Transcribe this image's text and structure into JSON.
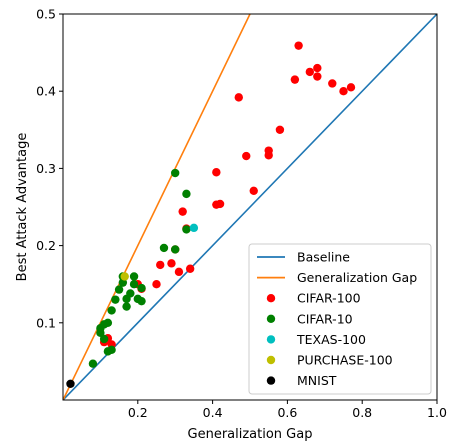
{
  "chart_data": {
    "type": "scatter",
    "xlabel": "Generalization Gap",
    "ylabel": "Best Attack Advantage",
    "xlim": [
      0.0,
      1.0
    ],
    "ylim": [
      0.0,
      0.5
    ],
    "x_ticks": [
      0.2,
      0.4,
      0.6,
      0.8,
      1.0
    ],
    "x_tick_labels": [
      "0.2",
      "0.4",
      "0.6",
      "0.8",
      "1.0"
    ],
    "y_ticks": [
      0.1,
      0.2,
      0.3,
      0.4,
      0.5
    ],
    "y_tick_labels": [
      "0.1",
      "0.2",
      "0.3",
      "0.4",
      "0.5"
    ],
    "grid": false,
    "legend_position": "bottom-right",
    "lines": [
      {
        "name": "Baseline",
        "color": "#1f77b4",
        "x": [
          0.0,
          1.0
        ],
        "y": [
          0.0,
          0.5
        ]
      },
      {
        "name": "Generalization Gap",
        "color": "#ff7f0e",
        "x": [
          0.0,
          0.5
        ],
        "y": [
          0.0,
          0.5
        ]
      }
    ],
    "series": [
      {
        "name": "CIFAR-100",
        "color": "#ff0000",
        "x": [
          0.63,
          0.66,
          0.68,
          0.68,
          0.72,
          0.75,
          0.77,
          0.62,
          0.47,
          0.58,
          0.55,
          0.55,
          0.49,
          0.51,
          0.41,
          0.42,
          0.41,
          0.32,
          0.33,
          0.3,
          0.29,
          0.31,
          0.25,
          0.26,
          0.34,
          0.2,
          0.21,
          0.12,
          0.11,
          0.13
        ],
        "y": [
          0.459,
          0.425,
          0.43,
          0.419,
          0.41,
          0.4,
          0.405,
          0.415,
          0.392,
          0.35,
          0.323,
          0.317,
          0.316,
          0.271,
          0.295,
          0.254,
          0.253,
          0.244,
          0.222,
          0.195,
          0.177,
          0.166,
          0.15,
          0.175,
          0.17,
          0.15,
          0.144,
          0.08,
          0.075,
          0.072
        ]
      },
      {
        "name": "CIFAR-10",
        "color": "#008000",
        "x": [
          0.3,
          0.33,
          0.27,
          0.3,
          0.33,
          0.16,
          0.19,
          0.16,
          0.19,
          0.21,
          0.15,
          0.18,
          0.2,
          0.17,
          0.17,
          0.21,
          0.14,
          0.13,
          0.11,
          0.12,
          0.1,
          0.1,
          0.11,
          0.13,
          0.12,
          0.08
        ],
        "y": [
          0.294,
          0.267,
          0.197,
          0.195,
          0.221,
          0.16,
          0.16,
          0.152,
          0.15,
          0.145,
          0.143,
          0.138,
          0.131,
          0.131,
          0.121,
          0.128,
          0.13,
          0.116,
          0.098,
          0.1,
          0.093,
          0.087,
          0.079,
          0.065,
          0.063,
          0.047
        ]
      },
      {
        "name": "TEXAS-100",
        "color": "#00bfbf",
        "x": [
          0.35
        ],
        "y": [
          0.223
        ]
      },
      {
        "name": "PURCHASE-100",
        "color": "#bfbf00",
        "x": [
          0.165
        ],
        "y": [
          0.16
        ]
      },
      {
        "name": "MNIST",
        "color": "#000000",
        "x": [
          0.02
        ],
        "y": [
          0.021
        ]
      }
    ]
  }
}
